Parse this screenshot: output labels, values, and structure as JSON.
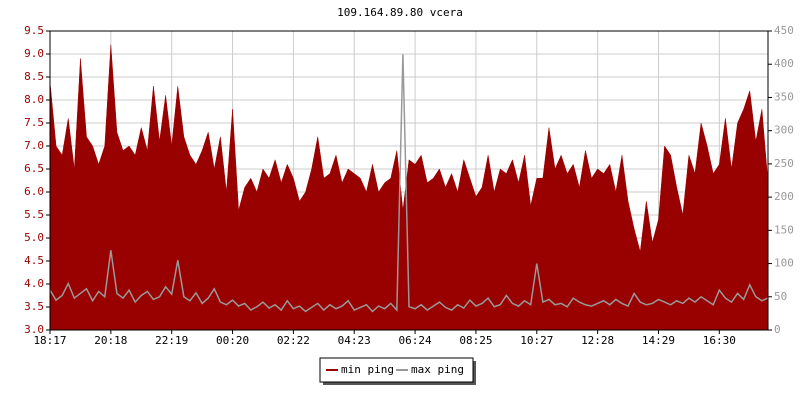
{
  "chart_data": {
    "type": "area",
    "title": "109.164.89.80 vcera",
    "categories": [
      "18:17",
      null,
      null,
      null,
      null,
      null,
      null,
      null,
      null,
      null,
      "20:18",
      null,
      null,
      null,
      null,
      null,
      null,
      null,
      null,
      null,
      "22:19",
      null,
      null,
      null,
      null,
      null,
      null,
      null,
      null,
      null,
      "00:20",
      null,
      null,
      null,
      null,
      null,
      null,
      null,
      null,
      null,
      "02:22",
      null,
      null,
      null,
      null,
      null,
      null,
      null,
      null,
      null,
      "04:23",
      null,
      null,
      null,
      null,
      null,
      null,
      null,
      null,
      null,
      "06:24",
      null,
      null,
      null,
      null,
      null,
      null,
      null,
      null,
      null,
      "08:25",
      null,
      null,
      null,
      null,
      null,
      null,
      null,
      null,
      null,
      "10:27",
      null,
      null,
      null,
      null,
      null,
      null,
      null,
      null,
      null,
      "12:28",
      null,
      null,
      null,
      null,
      null,
      null,
      null,
      null,
      null,
      "14:29",
      null,
      null,
      null,
      null,
      null,
      null,
      null,
      null,
      null,
      "16:30",
      null,
      null,
      null,
      null,
      null,
      null,
      null,
      null
    ],
    "series": [
      {
        "name": "min ping",
        "color": "#990000",
        "kind": "area",
        "values": [
          8.4,
          7.0,
          6.8,
          7.6,
          6.5,
          8.9,
          7.2,
          7.0,
          6.6,
          7.0,
          9.2,
          7.3,
          6.9,
          7.0,
          6.8,
          7.4,
          6.9,
          8.3,
          7.1,
          8.1,
          7.0,
          8.3,
          7.2,
          6.8,
          6.6,
          6.9,
          7.3,
          6.5,
          7.2,
          6.0,
          7.8,
          5.6,
          6.1,
          6.3,
          6.0,
          6.5,
          6.3,
          6.7,
          6.2,
          6.6,
          6.3,
          5.8,
          6.0,
          6.5,
          7.2,
          6.3,
          6.4,
          6.8,
          6.2,
          6.5,
          6.4,
          6.3,
          6.0,
          6.6,
          6.0,
          6.2,
          6.3,
          6.9,
          5.6,
          6.7,
          6.6,
          6.8,
          6.2,
          6.3,
          6.5,
          6.1,
          6.4,
          6.0,
          6.7,
          6.3,
          5.9,
          6.1,
          6.8,
          6.0,
          6.5,
          6.4,
          6.7,
          6.2,
          6.8,
          5.7,
          6.3,
          6.3,
          7.4,
          6.5,
          6.8,
          6.4,
          6.6,
          6.1,
          6.9,
          6.3,
          6.5,
          6.4,
          6.6,
          6.0,
          6.8,
          5.8,
          5.2,
          4.7,
          5.8,
          4.9,
          5.4,
          7.0,
          6.8,
          6.1,
          5.5,
          6.8,
          6.4,
          7.5,
          7.0,
          6.4,
          6.6,
          7.6,
          6.5,
          7.5,
          7.8,
          8.2,
          7.1,
          7.8,
          6.2
        ]
      },
      {
        "name": "max ping",
        "color": "#999999",
        "kind": "line",
        "axis": "y2",
        "values": [
          60,
          45,
          52,
          70,
          48,
          55,
          62,
          44,
          58,
          50,
          120,
          55,
          48,
          60,
          42,
          52,
          58,
          46,
          50,
          65,
          54,
          105,
          50,
          44,
          56,
          40,
          48,
          62,
          42,
          38,
          45,
          36,
          40,
          30,
          35,
          42,
          33,
          38,
          30,
          44,
          32,
          36,
          28,
          34,
          40,
          30,
          38,
          32,
          36,
          44,
          30,
          34,
          38,
          28,
          36,
          32,
          40,
          30,
          415,
          35,
          32,
          38,
          30,
          36,
          42,
          34,
          30,
          38,
          33,
          45,
          36,
          40,
          48,
          35,
          38,
          52,
          40,
          36,
          44,
          38,
          100,
          42,
          46,
          38,
          40,
          35,
          48,
          42,
          38,
          36,
          40,
          44,
          38,
          46,
          40,
          36,
          55,
          42,
          38,
          40,
          46,
          42,
          38,
          44,
          40,
          48,
          42,
          50,
          44,
          38,
          60,
          48,
          42,
          55,
          46,
          68,
          50,
          44,
          48
        ]
      }
    ],
    "ylim": [
      3.0,
      9.5
    ],
    "yticks": [
      {
        "value": 3,
        "label": "3.0"
      },
      3.5,
      {
        "value": 4,
        "label": "4.0"
      },
      4.5,
      {
        "value": 5,
        "label": "5.0"
      },
      5.5,
      {
        "value": 6,
        "label": "6.0"
      },
      6.5,
      {
        "value": 7,
        "label": "7.0"
      },
      7.5,
      {
        "value": 8,
        "label": "8.0"
      },
      8.5,
      {
        "value": 9,
        "label": "9.0"
      },
      9.5
    ],
    "y2lim": [
      0,
      450
    ],
    "y2ticks": [
      0,
      50,
      100,
      150,
      200,
      250,
      300,
      350,
      400,
      450
    ],
    "grid": true
  }
}
